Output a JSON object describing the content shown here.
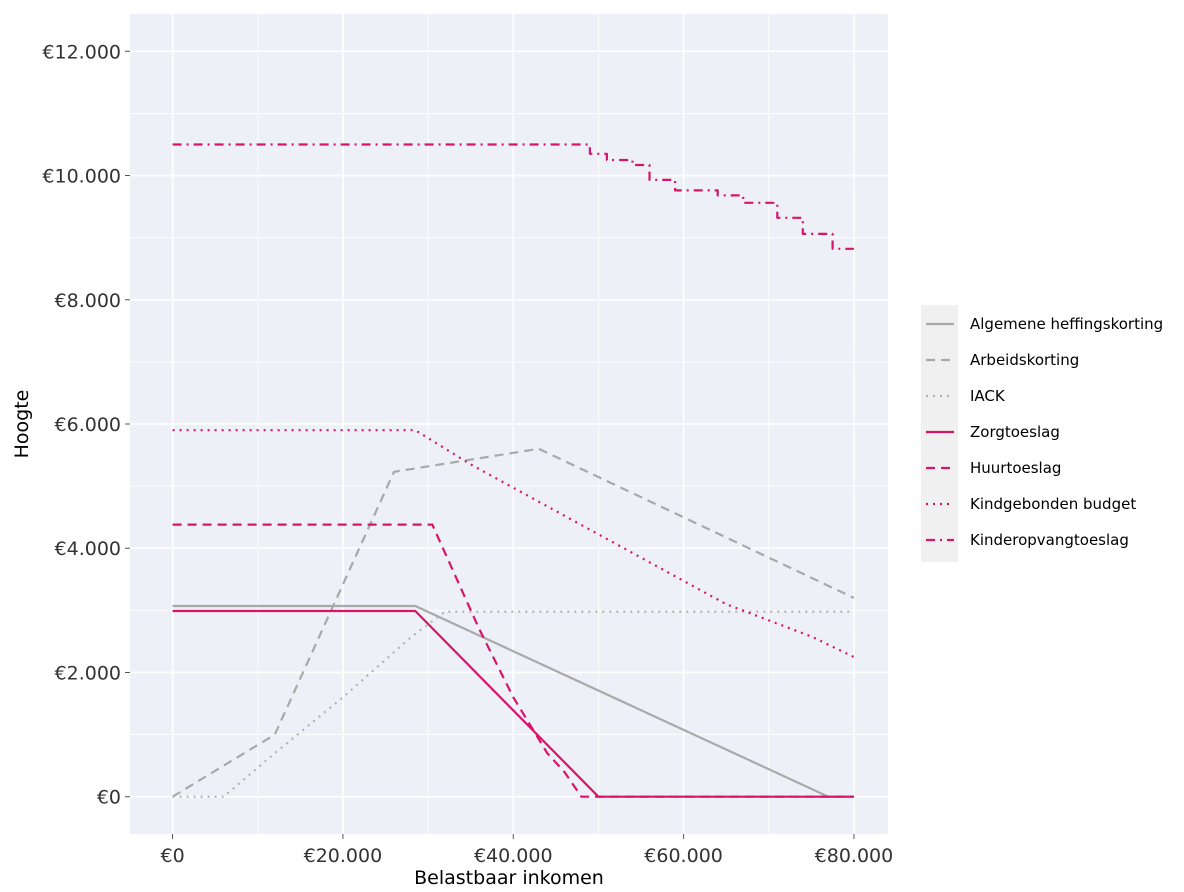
{
  "chart_data": {
    "type": "line",
    "title": "",
    "xlabel": "Belastbaar inkomen",
    "ylabel": "Hoogte",
    "xlim": [
      -5000,
      84000
    ],
    "ylim": [
      -600,
      12600
    ],
    "x_ticks": [
      0,
      20000,
      40000,
      60000,
      80000
    ],
    "x_tick_labels": [
      "€0",
      "€20.000",
      "€40.000",
      "€60.000",
      "€80.000"
    ],
    "y_ticks": [
      0,
      2000,
      4000,
      6000,
      8000,
      10000,
      12000
    ],
    "y_tick_labels": [
      "€0",
      "€2.000",
      "€4.000",
      "€6.000",
      "€8.000",
      "€10.000",
      "€12.000"
    ],
    "grid": true,
    "legend_position": "right",
    "colors": {
      "grey": "#a9a9a9",
      "pink": "#d6156b",
      "panel": "#edf0f7"
    },
    "series": [
      {
        "name": "Algemene heffingskorting",
        "color": "#a9a9a9",
        "dash": "solid",
        "x": [
          0,
          28500,
          77000,
          80000
        ],
        "y": [
          3070,
          3070,
          0,
          0
        ]
      },
      {
        "name": "Arbeidskorting",
        "color": "#a9a9a9",
        "dash": "dashed",
        "x": [
          0,
          12000,
          26000,
          43000,
          80000
        ],
        "y": [
          0,
          1000,
          5230,
          5600,
          3200
        ]
      },
      {
        "name": "IACK",
        "color": "#b3b3b3",
        "dash": "dotted",
        "x": [
          0,
          6000,
          12000,
          20000,
          28000,
          32000,
          80000
        ],
        "y": [
          0,
          0,
          700,
          1600,
          2570,
          2980,
          2980
        ]
      },
      {
        "name": "Zorgtoeslag",
        "color": "#d6156b",
        "dash": "solid",
        "x": [
          0,
          28500,
          50000,
          80000
        ],
        "y": [
          2990,
          2990,
          0,
          0
        ]
      },
      {
        "name": "Huurtoeslag",
        "color": "#d6156b",
        "dash": "dashed",
        "x": [
          0,
          30500,
          36000,
          40000,
          44000,
          46000,
          48000,
          80000
        ],
        "y": [
          4380,
          4380,
          2700,
          1600,
          700,
          400,
          0,
          0
        ]
      },
      {
        "name": "Kindgebonden budget",
        "color": "#d6156b",
        "dash": "dotted",
        "x": [
          0,
          28500,
          35000,
          45000,
          55000,
          65000,
          75000,
          80000
        ],
        "y": [
          5900,
          5900,
          5350,
          4600,
          3850,
          3100,
          2580,
          2250
        ]
      },
      {
        "name": "Kinderopvangtoeslag",
        "color": "#d6156b",
        "dash": "dotdash",
        "x": [
          0,
          47500,
          49000,
          49000,
          51000,
          51000,
          54000,
          54000,
          56000,
          56000,
          59000,
          59000,
          61000,
          61000,
          64000,
          64000,
          67000,
          67000,
          70000,
          70000,
          71000,
          71000,
          74000,
          74000,
          77500,
          77500,
          80000
        ],
        "y": [
          10500,
          10500,
          10500,
          10350,
          10350,
          10250,
          10250,
          10170,
          10170,
          9930,
          9930,
          9760,
          9760,
          9760,
          9760,
          9680,
          9680,
          9560,
          9560,
          9560,
          9560,
          9320,
          9320,
          9060,
          9060,
          8820,
          8820
        ]
      }
    ]
  }
}
